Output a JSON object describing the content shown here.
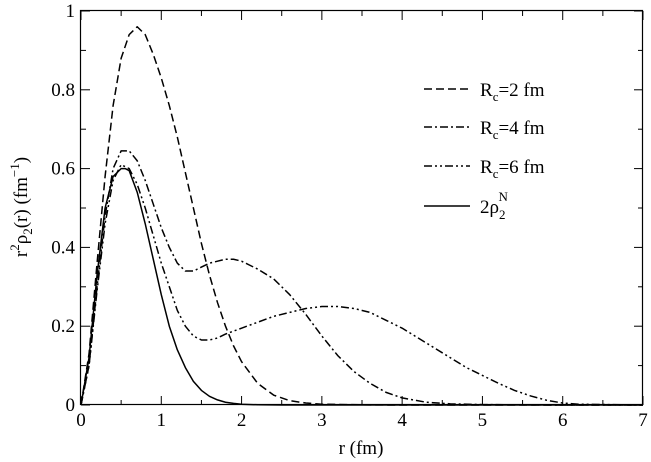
{
  "chart_data": {
    "type": "line",
    "xlabel": "r (fm)",
    "ylabel_parts": {
      "r": "r",
      "r_sup": "2",
      "rho": "ρ",
      "rho_sub": "2",
      "mid": "(r) (fm",
      "unit_sup": "−1",
      "end": ")"
    },
    "xlim": [
      0,
      7
    ],
    "ylim": [
      0,
      1
    ],
    "xticks": [
      "0",
      "1",
      "2",
      "3",
      "4",
      "5",
      "6",
      "7"
    ],
    "yticks": [
      "0",
      "0.2",
      "0.4",
      "0.6",
      "0.8",
      "1"
    ],
    "xtick_values": [
      0,
      1,
      2,
      3,
      4,
      5,
      6,
      7
    ],
    "ytick_values": [
      0,
      0.2,
      0.4,
      0.6,
      0.8,
      1
    ],
    "grid": false,
    "legend_position": "top-right",
    "series": [
      {
        "name": "Rc=2 fm",
        "legend": {
          "main": "R",
          "sub": "c",
          "rest": "=2 fm"
        },
        "dash": "dashed",
        "x": [
          0,
          0.1,
          0.2,
          0.3,
          0.4,
          0.5,
          0.6,
          0.7,
          0.8,
          0.9,
          1.0,
          1.1,
          1.2,
          1.3,
          1.4,
          1.5,
          1.6,
          1.7,
          1.8,
          1.9,
          2.0,
          2.2,
          2.4,
          2.6,
          2.8,
          3.0,
          3.3,
          3.6,
          4.0,
          5.0,
          6.0,
          7.0
        ],
        "y": [
          0,
          0.13,
          0.36,
          0.58,
          0.76,
          0.88,
          0.94,
          0.96,
          0.94,
          0.89,
          0.83,
          0.76,
          0.68,
          0.59,
          0.5,
          0.41,
          0.33,
          0.26,
          0.2,
          0.15,
          0.11,
          0.055,
          0.025,
          0.011,
          0.005,
          0.002,
          0.001,
          0.0003,
          0,
          0,
          0,
          0
        ]
      },
      {
        "name": "Rc=4 fm",
        "legend": {
          "main": "R",
          "sub": "c",
          "rest": "=4 fm"
        },
        "dash": "dashdot",
        "x": [
          0,
          0.1,
          0.2,
          0.3,
          0.4,
          0.5,
          0.6,
          0.7,
          0.8,
          0.9,
          1.0,
          1.1,
          1.2,
          1.3,
          1.4,
          1.5,
          1.6,
          1.7,
          1.8,
          1.9,
          2.0,
          2.1,
          2.2,
          2.4,
          2.6,
          2.8,
          3.0,
          3.2,
          3.4,
          3.6,
          3.8,
          4.0,
          4.3,
          4.6,
          5.0,
          6.0,
          7.0
        ],
        "y": [
          0,
          0.1,
          0.3,
          0.48,
          0.6,
          0.645,
          0.645,
          0.62,
          0.57,
          0.51,
          0.45,
          0.4,
          0.36,
          0.34,
          0.34,
          0.35,
          0.36,
          0.365,
          0.37,
          0.37,
          0.365,
          0.355,
          0.345,
          0.32,
          0.28,
          0.23,
          0.175,
          0.125,
          0.085,
          0.055,
          0.032,
          0.018,
          0.007,
          0.003,
          0.001,
          0,
          0
        ]
      },
      {
        "name": "Rc=6 fm",
        "legend": {
          "main": "R",
          "sub": "c",
          "rest": "=6 fm"
        },
        "dash": "dashdotdot",
        "x": [
          0,
          0.1,
          0.2,
          0.3,
          0.4,
          0.5,
          0.6,
          0.7,
          0.8,
          0.9,
          1.0,
          1.1,
          1.2,
          1.3,
          1.4,
          1.5,
          1.6,
          1.7,
          1.8,
          2.0,
          2.2,
          2.4,
          2.6,
          2.8,
          3.0,
          3.2,
          3.4,
          3.6,
          3.8,
          4.0,
          4.2,
          4.4,
          4.6,
          4.8,
          5.0,
          5.2,
          5.4,
          5.6,
          5.8,
          6.0,
          6.2,
          7.0
        ],
        "y": [
          0,
          0.1,
          0.29,
          0.46,
          0.57,
          0.61,
          0.6,
          0.56,
          0.5,
          0.43,
          0.36,
          0.3,
          0.24,
          0.2,
          0.175,
          0.165,
          0.165,
          0.17,
          0.18,
          0.195,
          0.21,
          0.225,
          0.235,
          0.245,
          0.25,
          0.25,
          0.245,
          0.235,
          0.215,
          0.195,
          0.17,
          0.145,
          0.12,
          0.095,
          0.075,
          0.055,
          0.037,
          0.023,
          0.012,
          0.005,
          0.002,
          0
        ]
      },
      {
        "name": "2ρ2N",
        "legend": {
          "main": "2ρ",
          "sub": "2",
          "sup": "N"
        },
        "dash": "solid",
        "x": [
          0,
          0.1,
          0.2,
          0.3,
          0.4,
          0.5,
          0.55,
          0.6,
          0.7,
          0.8,
          0.9,
          1.0,
          1.1,
          1.2,
          1.3,
          1.4,
          1.5,
          1.6,
          1.7,
          1.8,
          1.9,
          2.0,
          2.2,
          2.5,
          3.0,
          7.0
        ],
        "y": [
          0,
          0.12,
          0.33,
          0.5,
          0.58,
          0.6,
          0.6,
          0.595,
          0.54,
          0.46,
          0.37,
          0.28,
          0.2,
          0.14,
          0.095,
          0.06,
          0.037,
          0.022,
          0.013,
          0.007,
          0.004,
          0.002,
          0.0005,
          0,
          0,
          0
        ]
      }
    ]
  }
}
